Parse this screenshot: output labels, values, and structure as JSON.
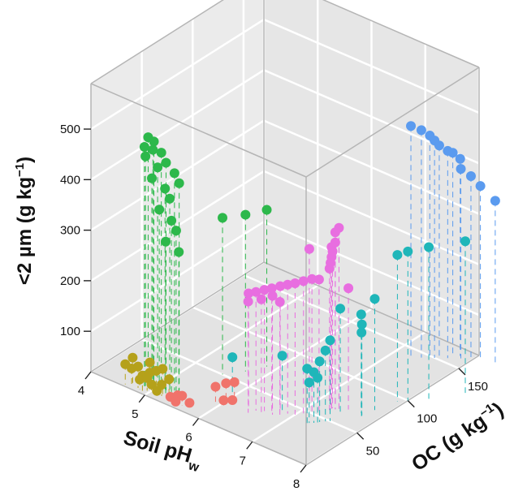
{
  "chart_data": {
    "type": "scatter3d",
    "axes": {
      "x": {
        "label": "Soil pH",
        "label_sub": "w",
        "ticks": [
          "4",
          "5",
          "6",
          "7",
          "8"
        ],
        "range": [
          4,
          8
        ]
      },
      "z": {
        "label": "OC (g kg",
        "label_sup": "−1",
        "label_end": ")",
        "ticks": [
          "50",
          "100",
          "150"
        ],
        "range": [
          0,
          170
        ]
      },
      "y": {
        "label": "<2 µm (g kg",
        "label_sup": "−1",
        "label_end": ")",
        "ticks": [
          "100",
          "200",
          "300",
          "400",
          "500"
        ],
        "range": [
          20,
          590
        ]
      }
    },
    "grid": true,
    "drop_lines": true,
    "series": [
      {
        "color": "#2db84b",
        "points": [
          [
            4.9,
            500,
            5
          ],
          [
            4.95,
            520,
            6
          ],
          [
            5.0,
            495,
            8
          ],
          [
            4.9,
            480,
            6
          ],
          [
            5.05,
            460,
            10
          ],
          [
            5.0,
            440,
            7
          ],
          [
            5.15,
            420,
            12
          ],
          [
            5.2,
            400,
            14
          ],
          [
            5.1,
            380,
            9
          ],
          [
            5.25,
            360,
            13
          ],
          [
            5.3,
            340,
            15
          ],
          [
            5.2,
            320,
            10
          ],
          [
            5.35,
            300,
            15
          ],
          [
            5.5,
            330,
            50
          ],
          [
            5.7,
            330,
            62
          ],
          [
            5.85,
            330,
            75
          ],
          [
            5.0,
            510,
            9
          ],
          [
            5.1,
            490,
            11
          ],
          [
            5.15,
            470,
            13
          ],
          [
            5.25,
            450,
            16
          ],
          [
            5.3,
            430,
            18
          ]
        ]
      },
      {
        "color": "#b5a11a",
        "points": [
          [
            4.6,
            60,
            2
          ],
          [
            4.7,
            55,
            3
          ],
          [
            4.8,
            62,
            4
          ],
          [
            4.9,
            50,
            3
          ],
          [
            5.0,
            58,
            5
          ],
          [
            5.1,
            65,
            6
          ],
          [
            5.2,
            72,
            7
          ],
          [
            5.3,
            55,
            8
          ],
          [
            4.85,
            40,
            3
          ],
          [
            4.95,
            45,
            5
          ],
          [
            5.05,
            38,
            4
          ],
          [
            5.2,
            42,
            6
          ],
          [
            4.7,
            75,
            4
          ],
          [
            5.15,
            30,
            4
          ],
          [
            5.0,
            78,
            5
          ]
        ]
      },
      {
        "color": "#f0736b",
        "points": [
          [
            5.4,
            30,
            4
          ],
          [
            5.5,
            35,
            6
          ],
          [
            5.6,
            40,
            5
          ],
          [
            5.7,
            28,
            7
          ],
          [
            5.9,
            50,
            22
          ],
          [
            6.0,
            55,
            27
          ],
          [
            6.1,
            58,
            30
          ],
          [
            6.05,
            30,
            22
          ],
          [
            6.1,
            25,
            28
          ],
          [
            5.5,
            25,
            4
          ]
        ]
      },
      {
        "color": "#e86ee0",
        "points": [
          [
            6.4,
            250,
            28
          ],
          [
            6.5,
            255,
            30
          ],
          [
            6.6,
            260,
            33
          ],
          [
            6.7,
            265,
            35
          ],
          [
            6.8,
            270,
            38
          ],
          [
            6.9,
            275,
            40
          ],
          [
            7.0,
            280,
            42
          ],
          [
            7.1,
            285,
            45
          ],
          [
            7.2,
            290,
            48
          ],
          [
            7.3,
            300,
            60
          ],
          [
            7.3,
            310,
            61
          ],
          [
            7.3,
            320,
            62
          ],
          [
            7.3,
            330,
            63
          ],
          [
            7.3,
            340,
            62
          ],
          [
            7.35,
            350,
            63
          ],
          [
            7.35,
            370,
            63
          ],
          [
            7.4,
            380,
            64
          ],
          [
            7.0,
            330,
            56
          ],
          [
            7.2,
            280,
            55
          ],
          [
            7.5,
            260,
            68
          ],
          [
            6.45,
            240,
            25
          ],
          [
            6.6,
            245,
            30
          ],
          [
            6.75,
            255,
            33
          ],
          [
            6.85,
            245,
            35
          ]
        ]
      },
      {
        "color": "#1fb6b9",
        "points": [
          [
            7.3,
            100,
            40
          ],
          [
            7.35,
            120,
            42
          ],
          [
            7.4,
            140,
            45
          ],
          [
            7.45,
            160,
            48
          ],
          [
            7.5,
            180,
            50
          ],
          [
            7.3,
            130,
            38
          ],
          [
            7.4,
            110,
            43
          ],
          [
            7.8,
            190,
            65
          ],
          [
            7.75,
            200,
            68
          ],
          [
            7.7,
            215,
            70
          ],
          [
            7.8,
            240,
            78
          ],
          [
            7.5,
            230,
            60
          ],
          [
            7.9,
            310,
            95
          ],
          [
            8.0,
            315,
            100
          ],
          [
            8.2,
            320,
            110
          ],
          [
            8.5,
            320,
            130
          ],
          [
            6.1,
            110,
            28
          ],
          [
            6.8,
            130,
            40
          ]
        ]
      },
      {
        "color": "#5b9bef",
        "points": [
          [
            7.3,
            480,
            140
          ],
          [
            7.4,
            470,
            145
          ],
          [
            7.5,
            460,
            148
          ],
          [
            7.55,
            450,
            150
          ],
          [
            7.6,
            440,
            152
          ],
          [
            7.7,
            430,
            155
          ],
          [
            7.7,
            420,
            160
          ],
          [
            7.8,
            410,
            162
          ],
          [
            7.85,
            395,
            160
          ],
          [
            8.0,
            385,
            162
          ],
          [
            8.1,
            365,
            166
          ],
          [
            8.3,
            340,
            170
          ]
        ]
      }
    ]
  }
}
